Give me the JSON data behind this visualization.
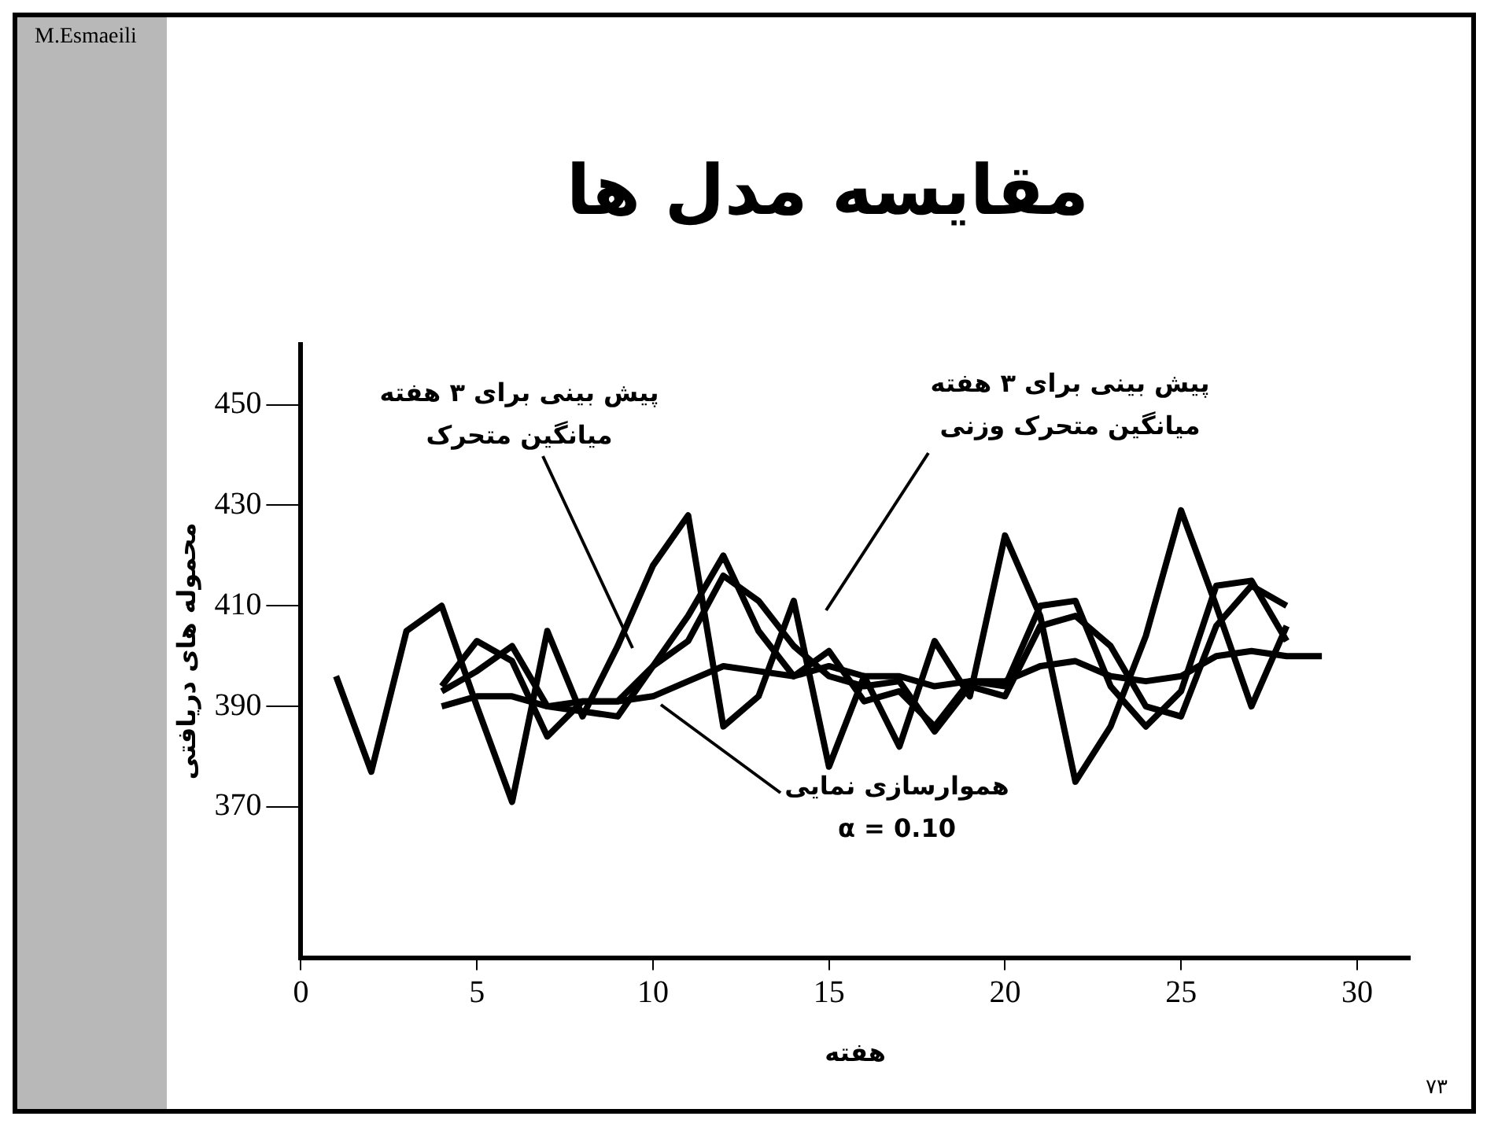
{
  "chart_data": {
    "type": "line",
    "title": "مقایسه مدل ها",
    "xlabel": "هفته",
    "ylabel": "محموله های دریافتی",
    "xlim": [
      0,
      31.5
    ],
    "ylim": [
      340,
      462
    ],
    "xticks": [
      0,
      5,
      10,
      15,
      20,
      25,
      30
    ],
    "yticks": [
      370,
      390,
      410,
      430,
      450
    ],
    "marker": "none",
    "line_style": "solid",
    "series": [
      {
        "color": "#000000",
        "x": [
          1,
          2,
          3,
          4,
          5,
          6,
          7,
          8,
          9,
          10,
          11,
          12,
          13,
          14,
          15,
          16,
          17,
          18,
          19,
          20,
          21,
          22,
          23,
          24,
          25,
          26,
          27,
          28
        ],
        "values": [
          396,
          377,
          405,
          410,
          390,
          371,
          405,
          388,
          402,
          418,
          428,
          386,
          392,
          411,
          378,
          396,
          382,
          403,
          392,
          424,
          408,
          375,
          386,
          404,
          429,
          410,
          390,
          406
        ]
      },
      {
        "color": "#000000",
        "x": [
          4,
          5,
          6,
          7,
          8,
          9,
          10,
          11,
          12,
          13,
          14,
          15,
          16,
          17,
          18,
          19,
          20,
          21,
          22,
          23,
          24,
          25,
          26,
          27,
          28
        ],
        "values": [
          393,
          397,
          402,
          390,
          389,
          388,
          398,
          403,
          416,
          411,
          402,
          396,
          394,
          395,
          385,
          394,
          392,
          406,
          408,
          402,
          390,
          388,
          406,
          414,
          410
        ]
      },
      {
        "color": "#000000",
        "x": [
          4,
          5,
          6,
          7,
          8,
          9,
          10,
          11,
          12,
          13,
          14,
          15,
          16,
          17,
          18,
          19,
          20,
          21,
          22,
          23,
          24,
          25,
          26,
          27,
          28
        ],
        "values": [
          394,
          403,
          399,
          384,
          391,
          391,
          398,
          408,
          420,
          405,
          396,
          401,
          391,
          393,
          386,
          395,
          394,
          410,
          411,
          394,
          386,
          393,
          414,
          415,
          403
        ]
      },
      {
        "color": "#000000",
        "x": [
          4,
          5,
          6,
          7,
          8,
          9,
          10,
          11,
          12,
          13,
          14,
          15,
          16,
          17,
          18,
          19,
          20,
          21,
          22,
          23,
          24,
          25,
          26,
          27,
          28,
          29
        ],
        "values": [
          390,
          392,
          392,
          390,
          391,
          391,
          392,
          395,
          398,
          397,
          396,
          398,
          396,
          396,
          394,
          395,
          395,
          398,
          399,
          396,
          395,
          396,
          400,
          401,
          400,
          400
        ]
      }
    ],
    "annotations": [
      "پیش بینی برای ۳ هفته\nمیانگین متحرک",
      "پیش بینی برای ۳ هفته\nمیانگین متحرک وزنی",
      "هموارسازی نمایی\nα = 0.10",
      "M.Esmaeili",
      "۷۳"
    ]
  }
}
